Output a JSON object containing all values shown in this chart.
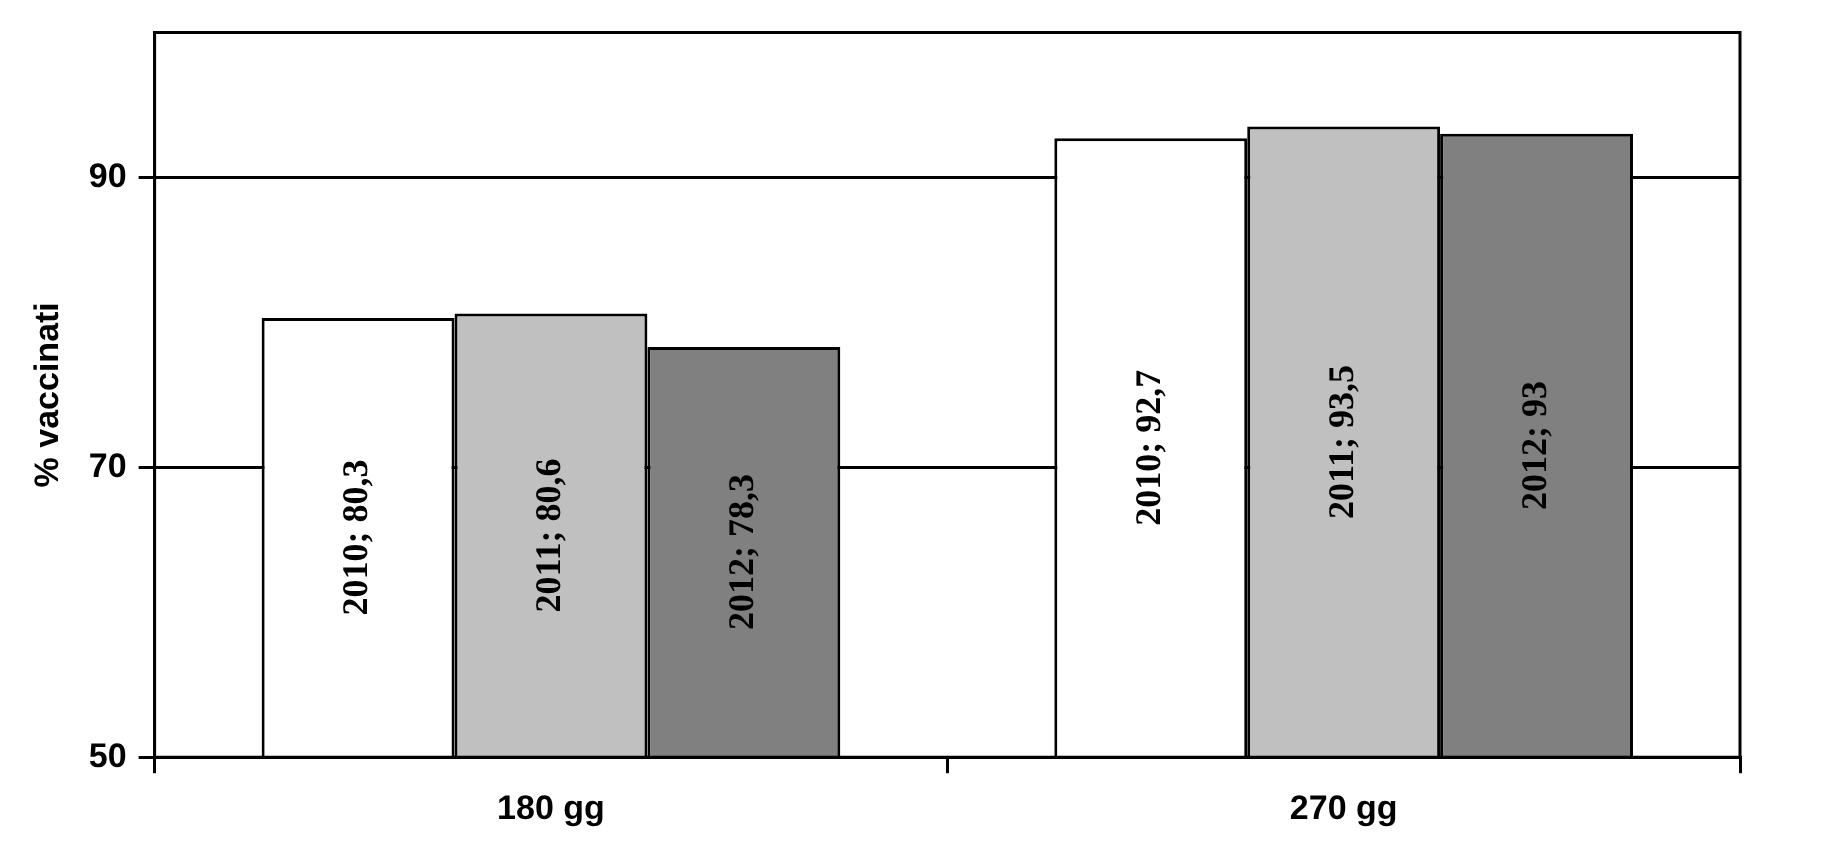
{
  "chart_data": {
    "type": "bar",
    "ylabel": "% vaccinati",
    "categories": [
      "180 gg",
      "270 gg"
    ],
    "series": [
      {
        "color": "#ffffff",
        "values": [
          80.3,
          92.7
        ],
        "value_labels": [
          "2010; 80,3",
          "2010; 92,7"
        ]
      },
      {
        "color": "#c0c0c0",
        "values": [
          80.6,
          93.5
        ],
        "value_labels": [
          "2011; 80,6",
          "2011; 93,5"
        ]
      },
      {
        "color": "#808080",
        "values": [
          78.3,
          93
        ],
        "value_labels": [
          "2012; 78,3",
          "2012; 93"
        ]
      }
    ],
    "ylim": [
      50,
      100
    ],
    "yticks": [
      50,
      70,
      90
    ],
    "grid": "y",
    "legend": false
  }
}
